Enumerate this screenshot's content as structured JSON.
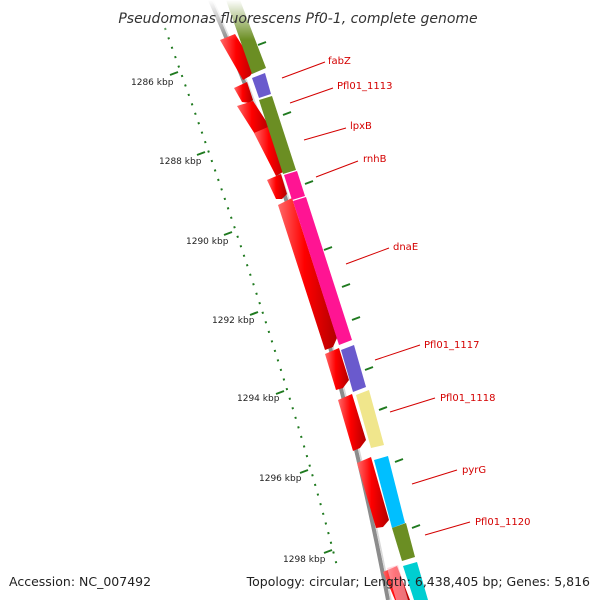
{
  "title": "Pseudomonas fluorescens Pf0-1, complete genome",
  "footer": {
    "accession": "Accession: NC_007492",
    "summary": "Topology: circular; Length: 6,438,405 bp; Genes: 5,816"
  },
  "ticks": [
    {
      "label": "1286 kbp"
    },
    {
      "label": "1288 kbp"
    },
    {
      "label": "1290 kbp"
    },
    {
      "label": "1292 kbp"
    },
    {
      "label": "1294 kbp"
    },
    {
      "label": "1296 kbp"
    },
    {
      "label": "1298 kbp"
    }
  ],
  "genes": [
    {
      "label": "fabZ"
    },
    {
      "label": "Pfl01_1113"
    },
    {
      "label": "lpxB"
    },
    {
      "label": "rnhB"
    },
    {
      "label": "dnaE"
    },
    {
      "label": "Pfl01_1117"
    },
    {
      "label": "Pfl01_1118"
    },
    {
      "label": "pyrG"
    },
    {
      "label": "Pfl01_1120"
    }
  ],
  "colors": {
    "cds": "#ff0000",
    "cds_dark": "#b00000",
    "backbone": "#8c8c8c",
    "tick": "#1f7a1f",
    "label": "#d40000",
    "olive": "#6b8e23",
    "purple": "#6a5acd",
    "magenta": "#ff1493",
    "khaki": "#f0e68c",
    "cyan": "#00bfff"
  }
}
